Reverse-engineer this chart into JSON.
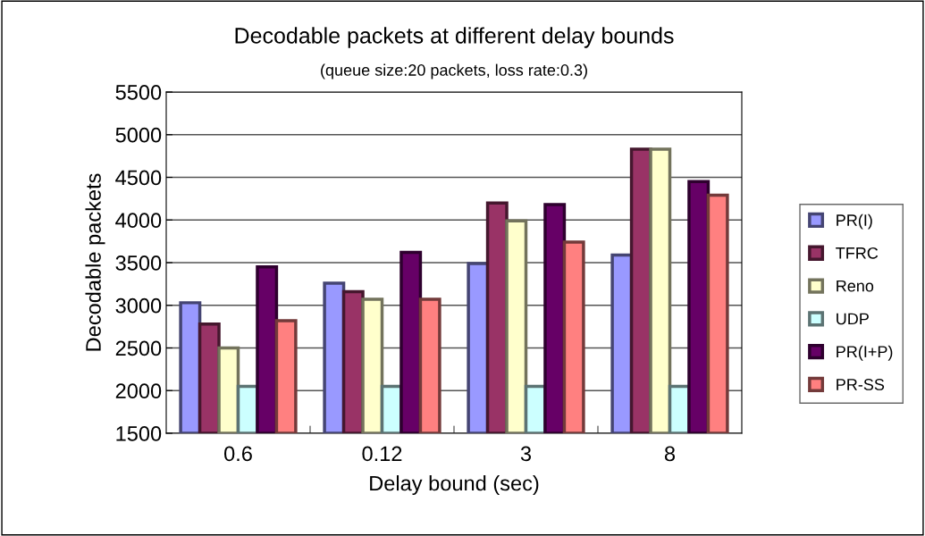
{
  "chart_data": {
    "type": "bar",
    "title": "Decodable packets at different delay bounds",
    "subtitle": "(queue size:20 packets, loss rate:0.3)",
    "xlabel": "Delay bound (sec)",
    "ylabel": "Decodable packets",
    "categories": [
      "0.6",
      "0.12",
      "3",
      "8"
    ],
    "series": [
      {
        "name": "PR(I)",
        "color": "#9999ff",
        "values": [
          3030,
          3260,
          3490,
          3590
        ]
      },
      {
        "name": "TFRC",
        "color": "#993366",
        "values": [
          2780,
          3160,
          4200,
          4830
        ]
      },
      {
        "name": "Reno",
        "color": "#ffffcc",
        "values": [
          2500,
          3070,
          3990,
          4830
        ]
      },
      {
        "name": "UDP",
        "color": "#ccffff",
        "values": [
          2050,
          2050,
          2050,
          2050
        ]
      },
      {
        "name": "PR(I+P)",
        "color": "#660066",
        "values": [
          3450,
          3620,
          4180,
          4450
        ]
      },
      {
        "name": "PR-SS",
        "color": "#ff8080",
        "values": [
          2820,
          3070,
          3740,
          4290
        ]
      }
    ],
    "ylim": [
      1500,
      5500
    ],
    "yticks": [
      1500,
      2000,
      2500,
      3000,
      3500,
      4000,
      4500,
      5000,
      5500
    ],
    "grid": "y",
    "legend": "right"
  }
}
